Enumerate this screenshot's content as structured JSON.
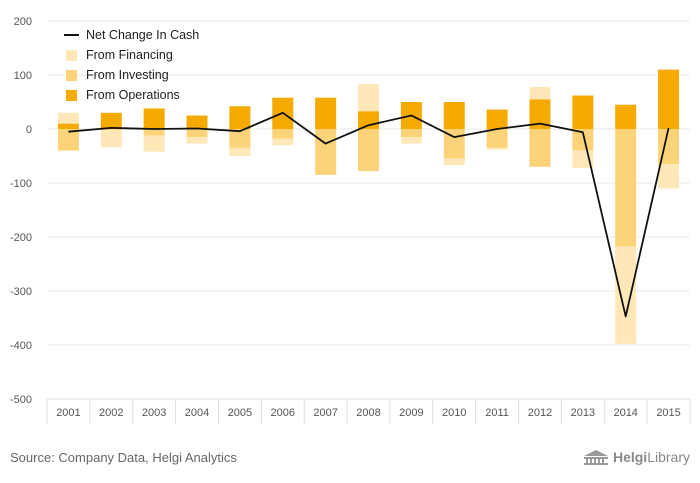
{
  "colors": {
    "operations": "#f5aa00",
    "investing": "#fdd37a",
    "financing": "#fee8b8",
    "net": "#111111",
    "grid": "#e9e9e9",
    "axis": "#dddddd"
  },
  "chart_data": {
    "type": "bar",
    "stacked": true,
    "categories": [
      "2001",
      "2002",
      "2003",
      "2004",
      "2005",
      "2006",
      "2007",
      "2008",
      "2009",
      "2010",
      "2011",
      "2012",
      "2013",
      "2014",
      "2015"
    ],
    "ylim": [
      -500,
      200
    ],
    "yticks": [
      200,
      100,
      0,
      -100,
      -200,
      -300,
      -400,
      -500
    ],
    "grid": true,
    "legend_position": "top-left",
    "series": [
      {
        "name": "From Operations",
        "type": "bar",
        "values": [
          10,
          30,
          38,
          25,
          42,
          58,
          58,
          33,
          50,
          50,
          36,
          55,
          62,
          45,
          110
        ]
      },
      {
        "name": "From Investing",
        "type": "bar",
        "values": [
          -40,
          -2,
          -12,
          -15,
          -35,
          -18,
          -85,
          -78,
          -15,
          -55,
          -35,
          -70,
          -40,
          -218,
          -65
        ]
      },
      {
        "name": "From Financing",
        "type": "bar",
        "values": [
          20,
          -32,
          -30,
          -12,
          -15,
          -12,
          0,
          50,
          -12,
          -12,
          -3,
          23,
          -32,
          -180,
          -45
        ]
      },
      {
        "name": "Net Change In Cash",
        "type": "line",
        "values": [
          -5,
          2,
          0,
          1,
          -4,
          30,
          -27,
          7,
          25,
          -15,
          0,
          10,
          -6,
          -347,
          2
        ]
      }
    ]
  },
  "source": "Source: Company Data, Helgi Analytics",
  "logo": {
    "brand": "Helgi",
    "suffix": "Library"
  }
}
